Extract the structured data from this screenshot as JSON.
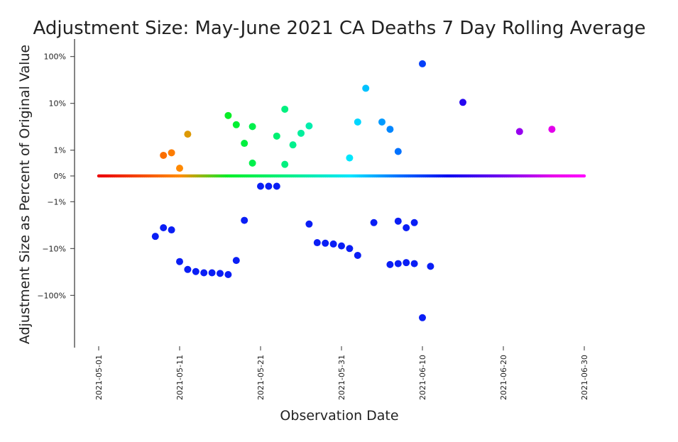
{
  "chart_data": {
    "type": "scatter",
    "title": "Adjustment Size: May-June 2021 CA Deaths 7 Day Rolling Average",
    "xlabel": "Observation Date",
    "ylabel": "Adjustment Size as Percent of Original Value",
    "y_scale": "symlog",
    "x_ticks": [
      "2021-05-01",
      "2021-05-11",
      "2021-05-21",
      "2021-05-31",
      "2021-06-10",
      "2021-06-20",
      "2021-06-30"
    ],
    "y_ticks": [
      "100%",
      "10%",
      "1%",
      "0%",
      "−1%",
      "−10%",
      "−100%"
    ],
    "baseline": {
      "from": "2021-05-01",
      "to": "2021-06-30",
      "value": 0
    },
    "grid": false,
    "colormap": "gist_rainbow-like (red → green → blue → magenta over date)",
    "points": [
      {
        "x": "2021-05-08",
        "y": -5.5
      },
      {
        "x": "2021-05-09",
        "y": -3.6
      },
      {
        "x": "2021-05-09",
        "y": 0.8
      },
      {
        "x": "2021-05-10",
        "y": -4.0
      },
      {
        "x": "2021-05-10",
        "y": 0.9
      },
      {
        "x": "2021-05-11",
        "y": 0.3
      },
      {
        "x": "2021-05-11",
        "y": -19
      },
      {
        "x": "2021-05-12",
        "y": -28
      },
      {
        "x": "2021-05-12",
        "y": 2.2
      },
      {
        "x": "2021-05-13",
        "y": -31
      },
      {
        "x": "2021-05-14",
        "y": -33
      },
      {
        "x": "2021-05-15",
        "y": -33
      },
      {
        "x": "2021-05-16",
        "y": -34
      },
      {
        "x": "2021-05-17",
        "y": -36
      },
      {
        "x": "2021-05-17",
        "y": 5.5
      },
      {
        "x": "2021-05-18",
        "y": -18
      },
      {
        "x": "2021-05-18",
        "y": 3.5
      },
      {
        "x": "2021-05-19",
        "y": -2.5
      },
      {
        "x": "2021-05-19",
        "y": 1.4
      },
      {
        "x": "2021-05-20",
        "y": 0.5
      },
      {
        "x": "2021-05-20",
        "y": 3.2
      },
      {
        "x": "2021-05-21",
        "y": -0.4
      },
      {
        "x": "2021-05-22",
        "y": -0.4
      },
      {
        "x": "2021-05-23",
        "y": -0.4
      },
      {
        "x": "2021-05-23",
        "y": 2.0
      },
      {
        "x": "2021-05-24",
        "y": 0.45
      },
      {
        "x": "2021-05-24",
        "y": 7.5
      },
      {
        "x": "2021-05-25",
        "y": 1.3
      },
      {
        "x": "2021-05-26",
        "y": 2.3
      },
      {
        "x": "2021-05-27",
        "y": -3.0
      },
      {
        "x": "2021-05-27",
        "y": 3.3
      },
      {
        "x": "2021-05-28",
        "y": -7.5
      },
      {
        "x": "2021-05-29",
        "y": -7.7
      },
      {
        "x": "2021-05-30",
        "y": -8.0
      },
      {
        "x": "2021-05-31",
        "y": -8.8
      },
      {
        "x": "2021-06-01",
        "y": 0.7
      },
      {
        "x": "2021-06-01",
        "y": -10
      },
      {
        "x": "2021-06-02",
        "y": 4.0
      },
      {
        "x": "2021-06-02",
        "y": -14
      },
      {
        "x": "2021-06-03",
        "y": 21
      },
      {
        "x": "2021-06-04",
        "y": -2.8
      },
      {
        "x": "2021-06-05",
        "y": 4.0
      },
      {
        "x": "2021-06-06",
        "y": -22
      },
      {
        "x": "2021-06-06",
        "y": 2.8
      },
      {
        "x": "2021-06-07",
        "y": -21
      },
      {
        "x": "2021-06-07",
        "y": -2.6
      },
      {
        "x": "2021-06-07",
        "y": 0.95
      },
      {
        "x": "2021-06-08",
        "y": -3.6
      },
      {
        "x": "2021-06-08",
        "y": -20
      },
      {
        "x": "2021-06-09",
        "y": -2.8
      },
      {
        "x": "2021-06-09",
        "y": -21
      },
      {
        "x": "2021-06-10",
        "y": 70
      },
      {
        "x": "2021-06-10",
        "y": -300
      },
      {
        "x": "2021-06-11",
        "y": -24
      },
      {
        "x": "2021-06-15",
        "y": 10.5
      },
      {
        "x": "2021-06-22",
        "y": 2.5
      },
      {
        "x": "2021-06-26",
        "y": 2.8
      }
    ]
  }
}
